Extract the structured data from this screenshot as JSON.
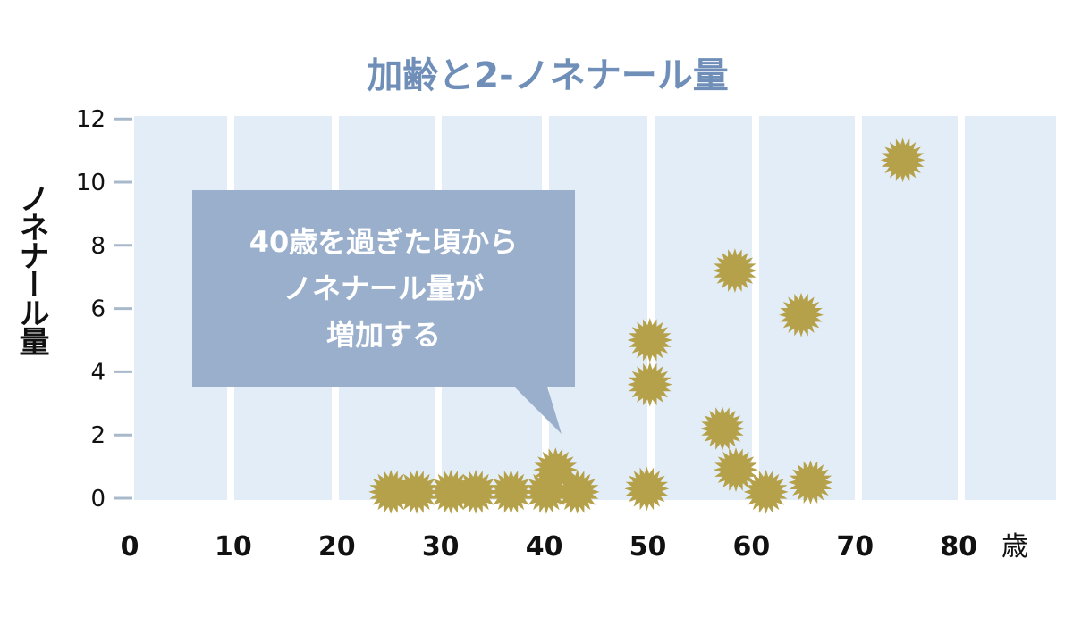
{
  "chart_data": {
    "type": "scatter",
    "title": "加齢と2-ノネナール量",
    "xlabel": "歳",
    "ylabel": "ノネナール量",
    "xlim": [
      0,
      88
    ],
    "ylim": [
      0,
      12
    ],
    "x_ticks": [
      "0",
      "10",
      "20",
      "30",
      "40",
      "50",
      "60",
      "70",
      "80"
    ],
    "y_ticks": [
      "0",
      "2",
      "4",
      "6",
      "8",
      "10",
      "12"
    ],
    "grid": "vertical bands",
    "marker": "starburst",
    "points": [
      {
        "x": 25.2,
        "y": 0.2
      },
      {
        "x": 27.7,
        "y": 0.2
      },
      {
        "x": 31.0,
        "y": 0.2
      },
      {
        "x": 33.4,
        "y": 0.2
      },
      {
        "x": 36.8,
        "y": 0.2
      },
      {
        "x": 40.2,
        "y": 0.2
      },
      {
        "x": 41.1,
        "y": 0.9
      },
      {
        "x": 43.2,
        "y": 0.2
      },
      {
        "x": 49.9,
        "y": 0.3
      },
      {
        "x": 50.2,
        "y": 3.6
      },
      {
        "x": 50.2,
        "y": 5.0
      },
      {
        "x": 57.2,
        "y": 2.2
      },
      {
        "x": 58.4,
        "y": 7.2
      },
      {
        "x": 58.5,
        "y": 0.9
      },
      {
        "x": 61.4,
        "y": 0.2
      },
      {
        "x": 64.8,
        "y": 5.8
      },
      {
        "x": 65.7,
        "y": 0.5
      },
      {
        "x": 74.6,
        "y": 10.7
      }
    ],
    "annotation": [
      "40歳を過ぎた頃から",
      "ノネナール量が",
      "増加する"
    ]
  },
  "colors": {
    "title": "#6f8fb9",
    "band": "#e3edf7",
    "marker": "#b5a149",
    "callout": "#9aafcc"
  }
}
